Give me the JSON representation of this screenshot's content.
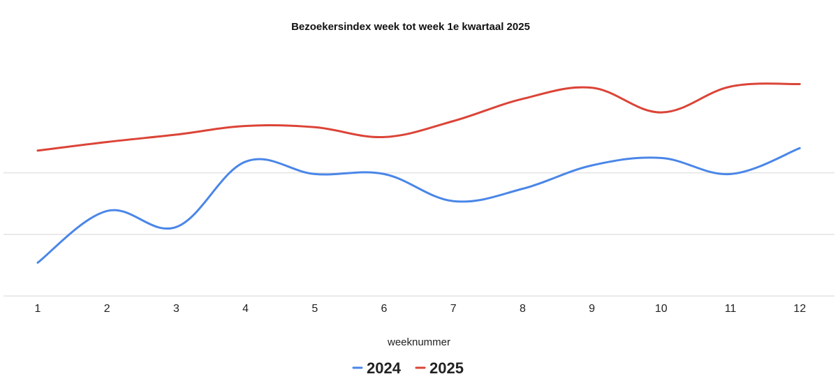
{
  "chart_data": {
    "type": "line",
    "title": "Bezoekersindex week tot week 1e kwartaal 2025",
    "xlabel": "weeknummer",
    "ylabel": "",
    "categories": [
      "1",
      "2",
      "3",
      "4",
      "5",
      "6",
      "7",
      "8",
      "9",
      "10",
      "11",
      "12"
    ],
    "x": [
      1,
      2,
      3,
      4,
      5,
      6,
      7,
      8,
      9,
      10,
      11,
      12
    ],
    "ylim": [
      0,
      240
    ],
    "gridlines": [
      60,
      110,
      160
    ],
    "grid": true,
    "legend_position": "bottom-center",
    "series": [
      {
        "name": "2024",
        "color": "#4a86e8",
        "values": [
          87,
          129,
          116,
          169,
          159,
          159,
          137,
          147,
          166,
          172,
          159,
          180
        ]
      },
      {
        "name": "2025",
        "color": "#db4437",
        "values": [
          178,
          185,
          191,
          198,
          197,
          189,
          202,
          220,
          229,
          209,
          230,
          232
        ]
      }
    ]
  }
}
